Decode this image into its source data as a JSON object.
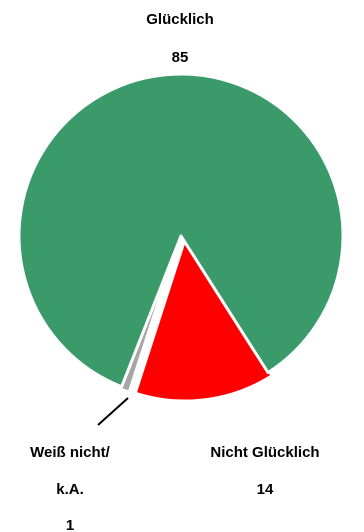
{
  "chart_data": {
    "type": "pie",
    "categories": [
      "Glücklich",
      "Nicht Glücklich",
      "Weiß nicht/ k.A."
    ],
    "values": [
      85,
      14,
      1
    ],
    "colors": [
      "#3a9a6a",
      "#ff0000",
      "#a6a6a6"
    ],
    "labels": {
      "gluecklich": {
        "name": "Glücklich",
        "value": "85"
      },
      "nicht_gluecklich": {
        "name": "Nicht Glücklich",
        "value": "14"
      },
      "weiss_nicht": {
        "name_line1": "Weiß nicht/",
        "name_line2": "k.A.",
        "value": "1"
      }
    },
    "exploded_slices": [
      "Nicht Glücklich",
      "Weiß nicht/ k.A."
    ]
  }
}
